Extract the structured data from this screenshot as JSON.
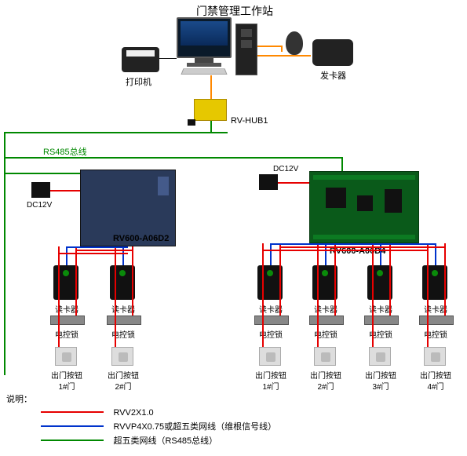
{
  "title": "门禁管理工作站",
  "labels": {
    "printer": "打印机",
    "card_issuer": "发卡器",
    "hub": "RV-HUB1",
    "bus": "RS485总线",
    "dc12v": "DC12V",
    "ctrl_left": "RV600-A06D2",
    "ctrl_right": "RV600-A06D4",
    "reader": "读卡器",
    "lock": "电控锁",
    "exit_btn": "出门按钮",
    "legend_title": "说明："
  },
  "doors_left": [
    "1#门",
    "2#门"
  ],
  "doors_right": [
    "1#门",
    "2#门",
    "3#门",
    "4#门"
  ],
  "legend": [
    {
      "color": "#e60000",
      "text": "RVV2X1.0"
    },
    {
      "color": "#0033cc",
      "text": "RVVP4X0.75或超五类网线（维根信号线）"
    },
    {
      "color": "#008800",
      "text": "超五类网线（RS485总线）"
    }
  ],
  "colors": {
    "red": "#e60000",
    "blue": "#0033cc",
    "green": "#008800",
    "orange": "#ff8800"
  }
}
